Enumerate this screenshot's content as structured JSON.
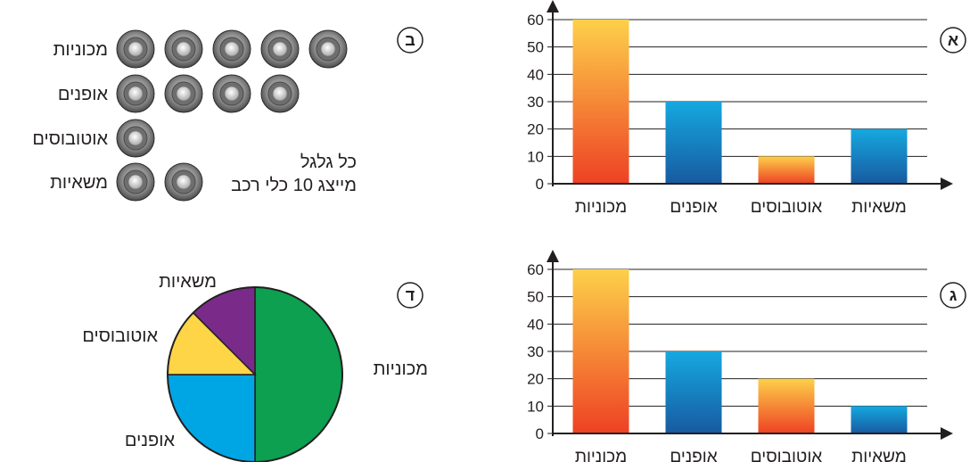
{
  "colors": {
    "orange_top": "#fdd04a",
    "orange_bottom": "#ee4124",
    "blue_top": "#16a8e0",
    "blue_bottom": "#175aa0",
    "pie_green": "#0ca050",
    "pie_blue": "#00a6e4",
    "pie_yellow": "#fed546",
    "pie_purple": "#7a2b8a",
    "grid": "#231f20"
  },
  "panel_a": {
    "letter": "א"
  },
  "panel_b": {
    "letter": "ב",
    "legend_line1": "כל גלגל",
    "legend_line2": "מייצג 10 כלי רכב",
    "icon": "wheel-icon",
    "per_icon": 10
  },
  "panel_c": {
    "letter": "ג"
  },
  "panel_d": {
    "letter": "ד"
  },
  "chart_data": [
    {
      "type": "bar",
      "categories": [
        "מכוניות",
        "אופנים",
        "אוטובוסים",
        "משאיות"
      ],
      "values": [
        60,
        30,
        10,
        20
      ],
      "bar_colors": [
        "orange",
        "blue",
        "orange",
        "blue"
      ],
      "ylim": [
        0,
        60
      ],
      "yticks": [
        0,
        10,
        20,
        30,
        40,
        50,
        60
      ],
      "grid": true
    },
    {
      "type": "pictogram",
      "categories": [
        "מכוניות",
        "אופנים",
        "אוטובוסים",
        "משאיות"
      ],
      "values": [
        50,
        40,
        10,
        20
      ]
    },
    {
      "type": "bar",
      "categories": [
        "מכוניות",
        "אופנים",
        "אוטובוסים",
        "משאיות"
      ],
      "values": [
        60,
        30,
        20,
        10
      ],
      "bar_colors": [
        "orange",
        "blue",
        "orange",
        "blue"
      ],
      "ylim": [
        0,
        60
      ],
      "yticks": [
        0,
        10,
        20,
        30,
        40,
        50,
        60
      ],
      "grid": true
    },
    {
      "type": "pie",
      "categories": [
        "מכוניות",
        "אופנים",
        "אוטובוסים",
        "משאיות"
      ],
      "values": [
        50,
        25,
        12.5,
        12.5
      ],
      "slice_colors": [
        "green",
        "blue",
        "yellow",
        "purple"
      ]
    }
  ]
}
